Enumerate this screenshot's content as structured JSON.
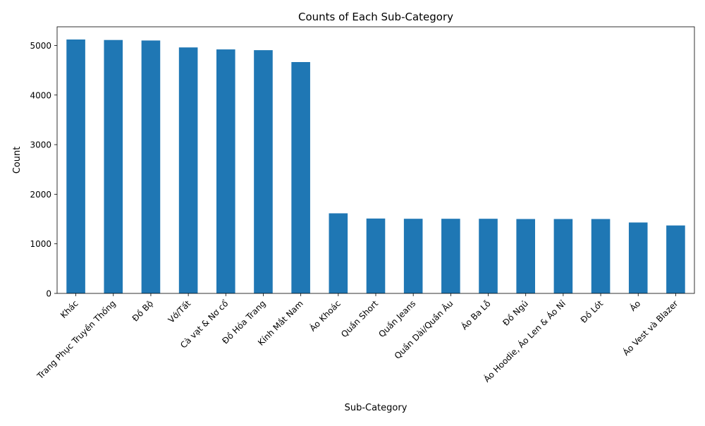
{
  "chart_data": {
    "type": "bar",
    "title": "Counts of Each Sub-Category",
    "xlabel": "Sub-Category",
    "ylabel": "Count",
    "categories": [
      "Khác",
      "Trang Phục Truyền Thống",
      "Đồ Bộ",
      "Vớ/Tất",
      "Cà vạt & Nơ cổ",
      "Đồ Hóa Trang",
      "Kính Mắt Nam",
      "Áo Khoác",
      "Quần Short",
      "Quần Jeans",
      "Quần Dài/Quần Âu",
      "Áo Ba Lỗ",
      "Đồ Ngủ",
      "Áo Hoodie, Áo Len & Áo Nỉ",
      "Đồ Lót",
      "Áo",
      "Áo Vest và Blazer"
    ],
    "values": [
      5120,
      5110,
      5100,
      4960,
      4920,
      4905,
      4665,
      1615,
      1510,
      1505,
      1505,
      1505,
      1500,
      1500,
      1500,
      1430,
      1370
    ],
    "ylim": [
      0,
      5376
    ],
    "yticks": [
      0,
      1000,
      2000,
      3000,
      4000,
      5000
    ],
    "bar_color": "#1f77b4",
    "grid": false,
    "legend": false
  }
}
